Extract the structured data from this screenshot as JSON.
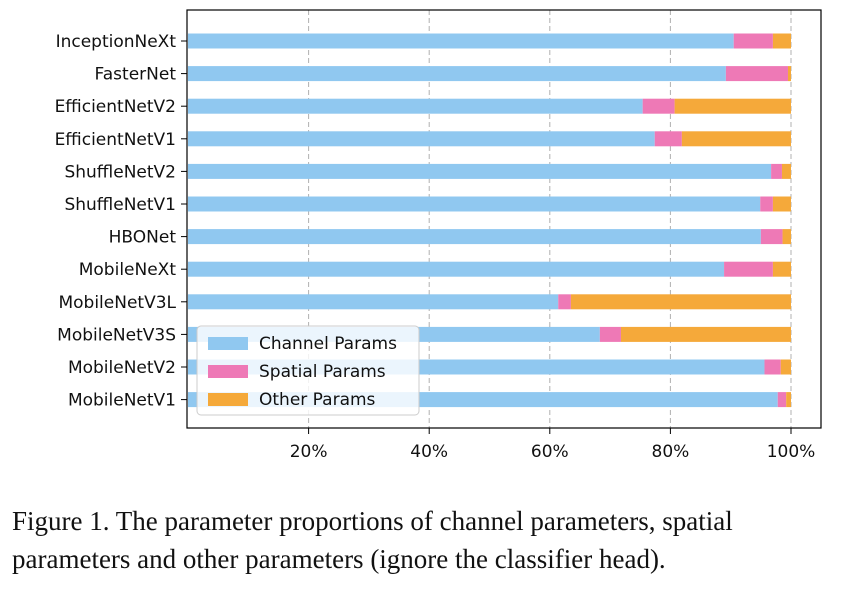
{
  "figure": {
    "caption": "Figure 1. The parameter proportions of channel parameters, spatial parameters and other parameters (ignore the classifier head)."
  },
  "chart_data": {
    "type": "bar",
    "orientation": "horizontal",
    "stacked": true,
    "categories": [
      "InceptionNeXt",
      "FasterNet",
      "EfficientNetV2",
      "EfficientNetV1",
      "ShuffleNetV2",
      "ShuffleNetV1",
      "HBONet",
      "MobileNeXt",
      "MobileNetV3L",
      "MobileNetV3S",
      "MobileNetV2",
      "MobileNetV1"
    ],
    "series": [
      {
        "name": "Channel Params",
        "color": "#90c8f0",
        "values": [
          90.5,
          89.2,
          75.4,
          77.4,
          96.7,
          94.9,
          95.0,
          88.9,
          61.4,
          68.3,
          95.6,
          97.8
        ]
      },
      {
        "name": "Spatial Params",
        "color": "#ee79b6",
        "values": [
          6.5,
          10.3,
          5.3,
          4.5,
          1.8,
          2.1,
          3.6,
          8.1,
          2.1,
          3.5,
          2.7,
          1.4
        ]
      },
      {
        "name": "Other Params",
        "color": "#f5a93a",
        "values": [
          3.0,
          0.5,
          19.3,
          18.1,
          1.5,
          3.0,
          1.4,
          3.0,
          36.5,
          28.2,
          1.7,
          0.8
        ]
      }
    ],
    "xlim": [
      0,
      100
    ],
    "xticks": [
      "20%",
      "40%",
      "60%",
      "80%",
      "100%"
    ],
    "xtick_values": [
      20,
      40,
      60,
      80,
      100
    ],
    "grid": "vertical dashed",
    "legend_position": "lower-left"
  }
}
